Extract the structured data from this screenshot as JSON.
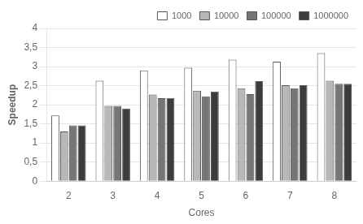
{
  "chart_data": {
    "type": "bar",
    "xlabel": "Cores",
    "ylabel": "Speedup",
    "categories": [
      "2",
      "3",
      "4",
      "5",
      "6",
      "7",
      "8"
    ],
    "series": [
      {
        "name": "1000",
        "color": "#ffffff",
        "values": [
          1.72,
          2.63,
          2.9,
          2.97,
          3.18,
          3.13,
          3.35
        ]
      },
      {
        "name": "10000",
        "color": "#b8b8b8",
        "values": [
          1.3,
          1.97,
          2.27,
          2.37,
          2.43,
          2.51,
          2.63
        ]
      },
      {
        "name": "100000",
        "color": "#767676",
        "values": [
          1.46,
          1.97,
          2.17,
          2.22,
          2.28,
          2.43,
          2.55
        ]
      },
      {
        "name": "1000000",
        "color": "#3c3c3c",
        "values": [
          1.46,
          1.9,
          2.18,
          2.35,
          2.62,
          2.51,
          2.55
        ]
      }
    ],
    "ylim": [
      0,
      4
    ],
    "yticks": [
      0,
      {
        "value": 0.5,
        "label": "0,5"
      },
      1,
      {
        "value": 1.5,
        "label": "1,5"
      },
      2,
      {
        "value": 2.5,
        "label": "2,5"
      },
      3,
      {
        "value": 3.5,
        "label": "3,5"
      },
      4
    ],
    "grid": true,
    "legend": "upper right"
  }
}
